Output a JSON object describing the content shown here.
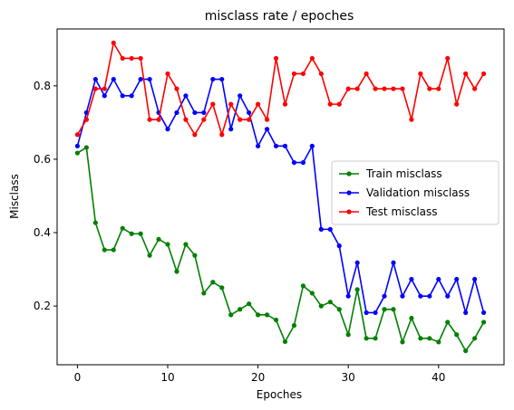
{
  "chart_data": {
    "type": "line",
    "title": "misclass rate / epoches",
    "xlabel": "Epoches",
    "ylabel": "Misclass",
    "xlim": [
      -2.25,
      47.25
    ],
    "ylim": [
      0.04,
      0.955
    ],
    "xticks": [
      0,
      10,
      20,
      30,
      40
    ],
    "yticks": [
      0.2,
      0.4,
      0.6,
      0.8
    ],
    "grid": false,
    "legend_position": "center-right",
    "series": [
      {
        "name": "Train misclass",
        "color": "#008000",
        "x": [
          0,
          1,
          2,
          3,
          4,
          5,
          6,
          7,
          8,
          9,
          10,
          11,
          12,
          13,
          14,
          15,
          16,
          17,
          18,
          19,
          20,
          21,
          22,
          23,
          24,
          25,
          26,
          27,
          28,
          29,
          30,
          31,
          32,
          33,
          34,
          35,
          36,
          37,
          38,
          39,
          40,
          41,
          42,
          43,
          44,
          45
        ],
        "values": [
          0.617,
          0.632,
          0.427,
          0.353,
          0.353,
          0.412,
          0.397,
          0.397,
          0.338,
          0.382,
          0.368,
          0.294,
          0.368,
          0.338,
          0.235,
          0.265,
          0.25,
          0.176,
          0.191,
          0.206,
          0.176,
          0.176,
          0.162,
          0.103,
          0.147,
          0.255,
          0.235,
          0.2,
          0.211,
          0.191,
          0.122,
          0.245,
          0.112,
          0.112,
          0.191,
          0.191,
          0.102,
          0.167,
          0.112,
          0.112,
          0.102,
          0.156,
          0.122,
          0.078,
          0.112,
          0.156
        ]
      },
      {
        "name": "Validation misclass",
        "color": "#0000ff",
        "x": [
          0,
          1,
          2,
          3,
          4,
          5,
          6,
          7,
          8,
          9,
          10,
          11,
          12,
          13,
          14,
          15,
          16,
          17,
          18,
          19,
          20,
          21,
          22,
          23,
          24,
          25,
          26,
          27,
          28,
          29,
          30,
          31,
          32,
          33,
          34,
          35,
          36,
          37,
          38,
          39,
          40,
          41,
          42,
          43,
          44,
          45
        ],
        "values": [
          0.636,
          0.727,
          0.818,
          0.773,
          0.818,
          0.773,
          0.773,
          0.818,
          0.818,
          0.727,
          0.682,
          0.727,
          0.773,
          0.727,
          0.727,
          0.818,
          0.818,
          0.682,
          0.773,
          0.727,
          0.636,
          0.682,
          0.636,
          0.636,
          0.591,
          0.591,
          0.636,
          0.409,
          0.409,
          0.364,
          0.227,
          0.318,
          0.182,
          0.182,
          0.227,
          0.318,
          0.227,
          0.273,
          0.227,
          0.227,
          0.273,
          0.227,
          0.273,
          0.182,
          0.273,
          0.182
        ]
      },
      {
        "name": "Test misclass",
        "color": "#ff0000",
        "x": [
          0,
          1,
          2,
          3,
          4,
          5,
          6,
          7,
          8,
          9,
          10,
          11,
          12,
          13,
          14,
          15,
          16,
          17,
          18,
          19,
          20,
          21,
          22,
          23,
          24,
          25,
          26,
          27,
          28,
          29,
          30,
          31,
          32,
          33,
          34,
          35,
          36,
          37,
          38,
          39,
          40,
          41,
          42,
          43,
          44,
          45
        ],
        "values": [
          0.667,
          0.708,
          0.792,
          0.792,
          0.917,
          0.875,
          0.875,
          0.875,
          0.708,
          0.708,
          0.833,
          0.792,
          0.708,
          0.667,
          0.708,
          0.75,
          0.667,
          0.75,
          0.708,
          0.708,
          0.75,
          0.708,
          0.875,
          0.75,
          0.833,
          0.833,
          0.875,
          0.833,
          0.75,
          0.75,
          0.792,
          0.792,
          0.833,
          0.792,
          0.792,
          0.792,
          0.792,
          0.708,
          0.833,
          0.792,
          0.792,
          0.875,
          0.75,
          0.833,
          0.792,
          0.833
        ]
      }
    ]
  }
}
